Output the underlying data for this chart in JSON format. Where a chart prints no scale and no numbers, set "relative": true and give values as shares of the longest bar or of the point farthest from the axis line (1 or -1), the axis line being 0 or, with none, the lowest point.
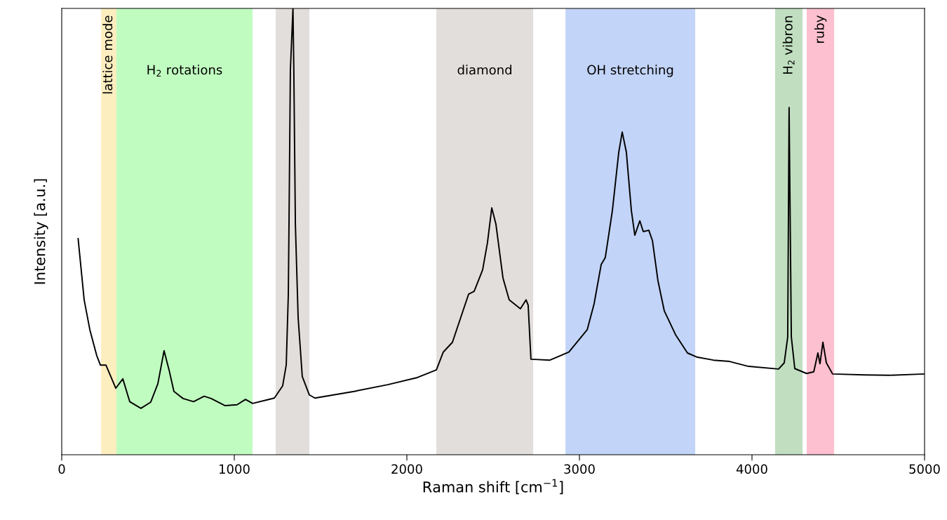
{
  "chart_data": {
    "type": "line",
    "xlabel": "Raman shift [cm$^{−1}$]",
    "ylabel": "Intensity [a.u.]",
    "relative": true,
    "xlim": [
      0,
      5000
    ],
    "xticks": [
      0,
      1000,
      2000,
      3000,
      4000,
      5000
    ],
    "tick_labels": "x",
    "grid": false,
    "legend": false,
    "series": [
      {
        "color": "#000000",
        "x": [
          95,
          130,
          163,
          203,
          224,
          256,
          313,
          354,
          394,
          459,
          516,
          557,
          593,
          622,
          650,
          703,
          764,
          825,
          866,
          947,
          1016,
          1065,
          1106,
          1191,
          1232,
          1280,
          1301,
          1313,
          1317,
          1325,
          1340,
          1345,
          1354,
          1370,
          1394,
          1435,
          1467,
          1695,
          1890,
          2061,
          2171,
          2211,
          2264,
          2358,
          2390,
          2439,
          2467,
          2492,
          2516,
          2557,
          2593,
          2658,
          2691,
          2703,
          2719,
          2829,
          2939,
          3045,
          3085,
          3126,
          3150,
          3191,
          3228,
          3248,
          3272,
          3301,
          3321,
          3350,
          3370,
          3402,
          3423,
          3455,
          3492,
          3557,
          3626,
          3679,
          3776,
          3870,
          3980,
          4154,
          4187,
          4207,
          4215,
          4228,
          4248,
          4317,
          4358,
          4382,
          4394,
          4411,
          4431,
          4467,
          4654,
          4793,
          4996
        ],
        "values": [
          0.484,
          0.347,
          0.28,
          0.222,
          0.201,
          0.201,
          0.149,
          0.17,
          0.119,
          0.104,
          0.118,
          0.159,
          0.233,
          0.19,
          0.142,
          0.126,
          0.119,
          0.131,
          0.126,
          0.11,
          0.112,
          0.124,
          0.115,
          0.123,
          0.127,
          0.154,
          0.201,
          0.358,
          0.516,
          0.862,
          1.0,
          0.862,
          0.516,
          0.307,
          0.175,
          0.134,
          0.127,
          0.142,
          0.157,
          0.173,
          0.19,
          0.23,
          0.252,
          0.36,
          0.366,
          0.414,
          0.475,
          0.553,
          0.517,
          0.396,
          0.347,
          0.327,
          0.347,
          0.335,
          0.214,
          0.212,
          0.23,
          0.28,
          0.338,
          0.426,
          0.442,
          0.547,
          0.678,
          0.723,
          0.678,
          0.547,
          0.492,
          0.524,
          0.5,
          0.503,
          0.48,
          0.39,
          0.322,
          0.269,
          0.228,
          0.219,
          0.212,
          0.209,
          0.198,
          0.192,
          0.206,
          0.264,
          0.778,
          0.264,
          0.193,
          0.182,
          0.186,
          0.228,
          0.204,
          0.252,
          0.206,
          0.181,
          0.179,
          0.178,
          0.181
        ]
      }
    ],
    "bands": [
      {
        "axis": "x",
        "from": 228,
        "to": 317,
        "label": "lattice mode",
        "color": "#fdeec0"
      },
      {
        "axis": "x",
        "from": 317,
        "to": 1106,
        "label": "H$_{2}$ rotations",
        "color": "#c0fcc0"
      },
      {
        "axis": "x",
        "from": 1240,
        "to": 1435,
        "label": null,
        "color": "#e2dedc"
      },
      {
        "axis": "x",
        "from": 2171,
        "to": 2732,
        "label": "diamond",
        "color": "#e2dedc"
      },
      {
        "axis": "x",
        "from": 2919,
        "to": 3671,
        "label": "OH stretching",
        "color": "#c2d4f7"
      },
      {
        "axis": "x",
        "from": 4134,
        "to": 4293,
        "label": "H$_{2}$ vibron",
        "color": "#c1dfc0"
      },
      {
        "axis": "x",
        "from": 4317,
        "to": 4476,
        "label": "ruby",
        "color": "#fdc0d0"
      }
    ]
  }
}
